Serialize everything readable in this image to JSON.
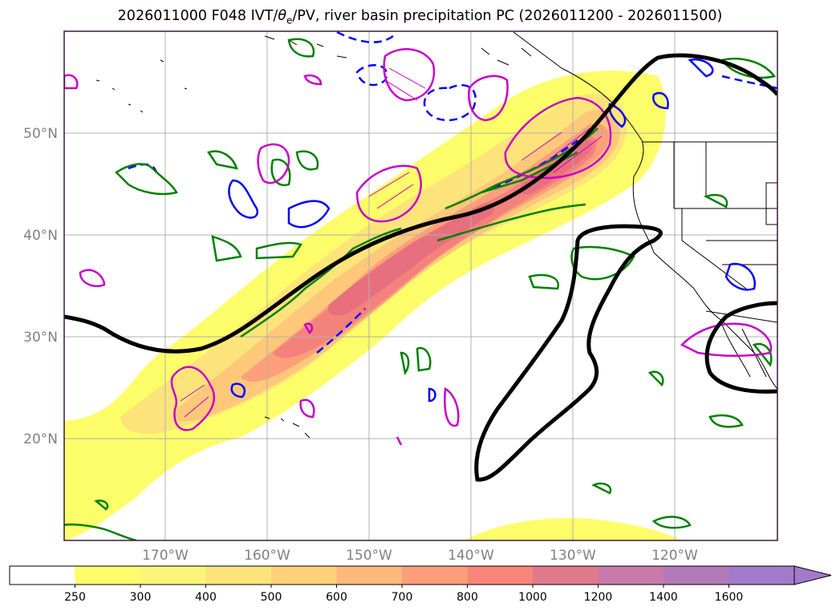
{
  "title": {
    "run": "2026011000 F048 IVT/",
    "theta": "θ",
    "sub": "e",
    "rest": "/PV, river basin precipitation PC (2026011200 - 2026011500)"
  },
  "map": {
    "lat_labels": [
      "50°N",
      "40°N",
      "30°N",
      "20°N"
    ],
    "lat_values": [
      50,
      40,
      30,
      20
    ],
    "lon_labels": [
      "170°W",
      "160°W",
      "150°W",
      "140°W",
      "130°W",
      "120°W"
    ],
    "lon_values": [
      -170,
      -160,
      -150,
      -140,
      -130,
      -120
    ],
    "lon_range": [
      -180,
      -110
    ],
    "lat_range": [
      10,
      60
    ]
  },
  "colorbar": {
    "levels": [
      "250",
      "300",
      "400",
      "500",
      "600",
      "700",
      "800",
      "1000",
      "1200",
      "1400",
      "1600"
    ],
    "colors": [
      "#ffffff",
      "#fdfd6a",
      "#fdf57a",
      "#fde47a",
      "#fdd27a",
      "#fdb87a",
      "#fd9e7a",
      "#f8857a",
      "#e07a8a",
      "#c87aaa",
      "#b27ab8",
      "#a27acb"
    ],
    "extend": "max"
  },
  "colors": {
    "jet": "#000000",
    "pv_green": "#008000",
    "theta_blue": "#0000ff",
    "precip_magenta": "#c800c8",
    "grid": "#b0b0b0",
    "frame": "#3a1a3a"
  }
}
